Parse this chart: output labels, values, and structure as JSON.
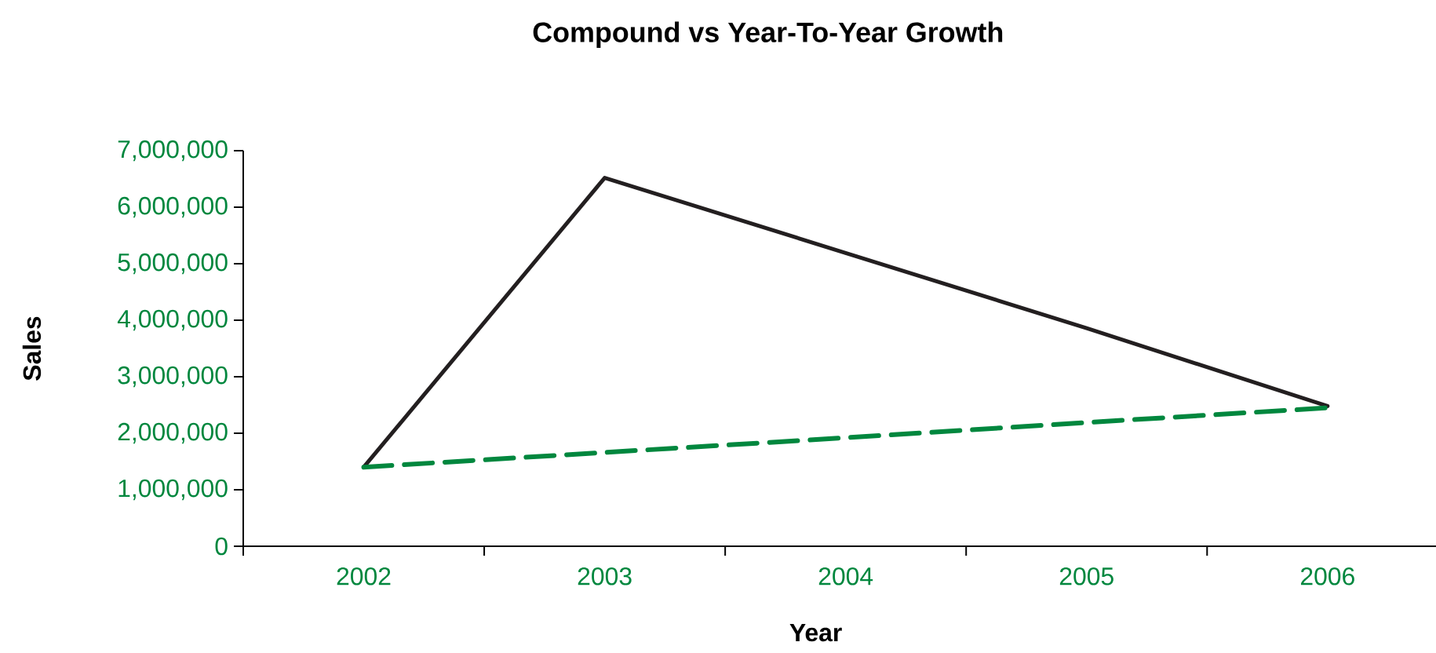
{
  "chart_data": {
    "type": "line",
    "title": "Compound vs Year-To-Year Growth",
    "xlabel": "Year",
    "ylabel": "Sales",
    "categories": [
      "2002",
      "2003",
      "2004",
      "2005",
      "2006"
    ],
    "series": [
      {
        "color": "#231f20",
        "line_style": "solid",
        "values": [
          1400000,
          6520000,
          5190000,
          3860000,
          2480000
        ]
      },
      {
        "color": "#00873e",
        "line_style": "dashed",
        "values": [
          1400000,
          1660000,
          1920000,
          2190000,
          2450000
        ]
      }
    ],
    "ylim": [
      0,
      7000000
    ],
    "yticks": [
      {
        "value": 0,
        "label": "0"
      },
      {
        "value": 1000000,
        "label": "1,000,000"
      },
      {
        "value": 2000000,
        "label": "2,000,000"
      },
      {
        "value": 3000000,
        "label": "3,000,000"
      },
      {
        "value": 4000000,
        "label": "4,000,000"
      },
      {
        "value": 5000000,
        "label": "5,000,000"
      },
      {
        "value": 6000000,
        "label": "6,000,000"
      },
      {
        "value": 7000000,
        "label": "7,000,000"
      }
    ],
    "grid": false,
    "marker": "none"
  }
}
